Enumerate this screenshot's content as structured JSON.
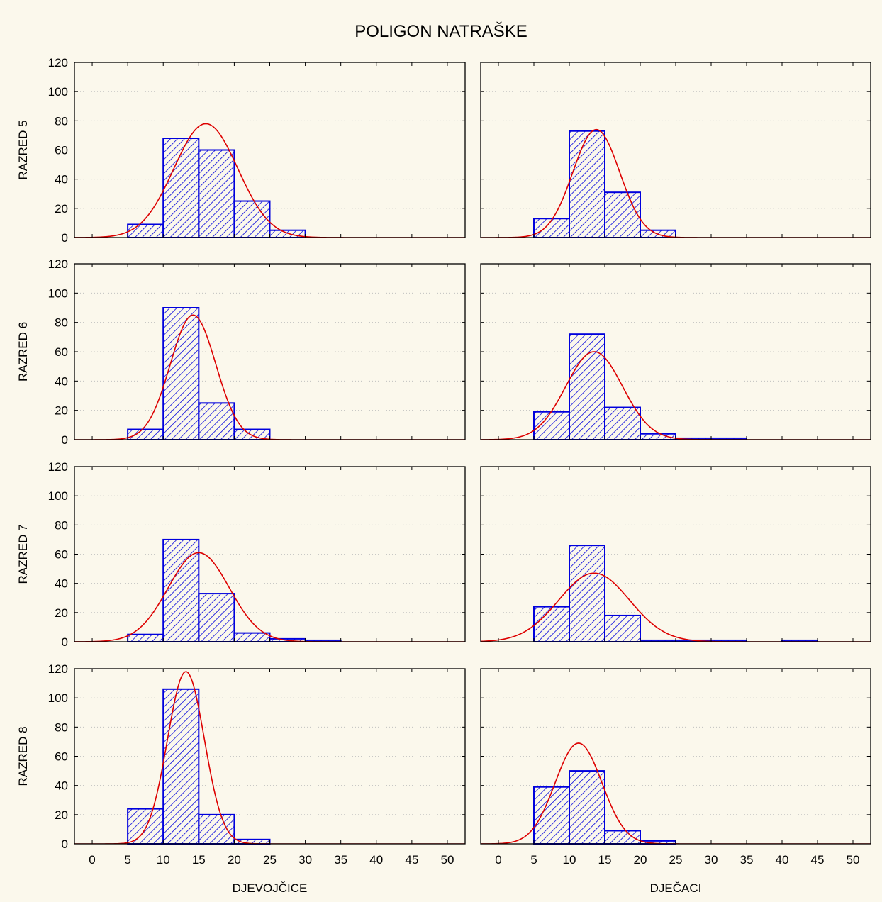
{
  "chart_data": {
    "type": "bar",
    "title": "POLIGON NATRAŠKE",
    "rows": [
      "RAZRED 5",
      "RAZRED 6",
      "RAZRED 7",
      "RAZRED 8"
    ],
    "columns": [
      "DJEVOJČICE",
      "DJEČACI"
    ],
    "xlim": [
      -2.5,
      52.5
    ],
    "ylim": [
      0,
      120
    ],
    "x_ticks": [
      0,
      5,
      10,
      15,
      20,
      25,
      30,
      35,
      40,
      45,
      50
    ],
    "y_ticks": [
      0,
      20,
      40,
      60,
      80,
      100,
      120
    ],
    "grid": "horizontal-dotted",
    "bar_fill": "blue diagonal hatch",
    "colors": {
      "bar_stroke": "#0000dd",
      "hatch": "#0000dd",
      "curve": "#dd0000",
      "background": "#fbf8ec"
    },
    "bin_edges": [
      5,
      10,
      15,
      20,
      25,
      30,
      35,
      40,
      45
    ],
    "panels": [
      {
        "row": "RAZRED 5",
        "column": "DJEVOJČICE",
        "bins": [
          [
            5,
            10,
            9
          ],
          [
            10,
            15,
            68
          ],
          [
            15,
            20,
            60
          ],
          [
            20,
            25,
            25
          ],
          [
            25,
            30,
            5
          ]
        ],
        "normal_fit": {
          "mean": 16.0,
          "peak": 78,
          "sd": 4.5
        }
      },
      {
        "row": "RAZRED 5",
        "column": "DJEČACI",
        "bins": [
          [
            5,
            10,
            13
          ],
          [
            10,
            15,
            73
          ],
          [
            15,
            20,
            31
          ],
          [
            20,
            25,
            5
          ]
        ],
        "normal_fit": {
          "mean": 13.8,
          "peak": 74,
          "sd": 3.3
        }
      },
      {
        "row": "RAZRED 6",
        "column": "DJEVOJČICE",
        "bins": [
          [
            5,
            10,
            7
          ],
          [
            10,
            15,
            90
          ],
          [
            15,
            20,
            25
          ],
          [
            20,
            25,
            7
          ]
        ],
        "normal_fit": {
          "mean": 14.2,
          "peak": 85,
          "sd": 3.2
        }
      },
      {
        "row": "RAZRED 6",
        "column": "DJEČACI",
        "bins": [
          [
            5,
            10,
            19
          ],
          [
            10,
            15,
            72
          ],
          [
            15,
            20,
            22
          ],
          [
            20,
            25,
            4
          ],
          [
            25,
            30,
            1
          ],
          [
            30,
            35,
            1
          ]
        ],
        "normal_fit": {
          "mean": 13.5,
          "peak": 60,
          "sd": 4.0
        }
      },
      {
        "row": "RAZRED 7",
        "column": "DJEVOJČICE",
        "bins": [
          [
            5,
            10,
            5
          ],
          [
            10,
            15,
            70
          ],
          [
            15,
            20,
            33
          ],
          [
            20,
            25,
            6
          ],
          [
            25,
            30,
            2
          ],
          [
            30,
            35,
            1
          ]
        ],
        "normal_fit": {
          "mean": 15.0,
          "peak": 61,
          "sd": 4.3
        }
      },
      {
        "row": "RAZRED 7",
        "column": "DJEČACI",
        "bins": [
          [
            5,
            10,
            24
          ],
          [
            10,
            15,
            66
          ],
          [
            15,
            20,
            18
          ],
          [
            20,
            25,
            1
          ],
          [
            25,
            30,
            1
          ],
          [
            30,
            35,
            1
          ],
          [
            40,
            45,
            1
          ]
        ],
        "normal_fit": {
          "mean": 13.5,
          "peak": 47,
          "sd": 5.0
        }
      },
      {
        "row": "RAZRED 8",
        "column": "DJEVOJČICE",
        "bins": [
          [
            5,
            10,
            24
          ],
          [
            10,
            15,
            106
          ],
          [
            15,
            20,
            20
          ],
          [
            20,
            25,
            3
          ]
        ],
        "normal_fit": {
          "mean": 13.2,
          "peak": 118,
          "sd": 2.6
        }
      },
      {
        "row": "RAZRED 8",
        "column": "DJEČACI",
        "bins": [
          [
            5,
            10,
            39
          ],
          [
            10,
            15,
            50
          ],
          [
            15,
            20,
            9
          ],
          [
            20,
            25,
            2
          ]
        ],
        "normal_fit": {
          "mean": 11.3,
          "peak": 69,
          "sd": 3.3
        }
      }
    ]
  }
}
